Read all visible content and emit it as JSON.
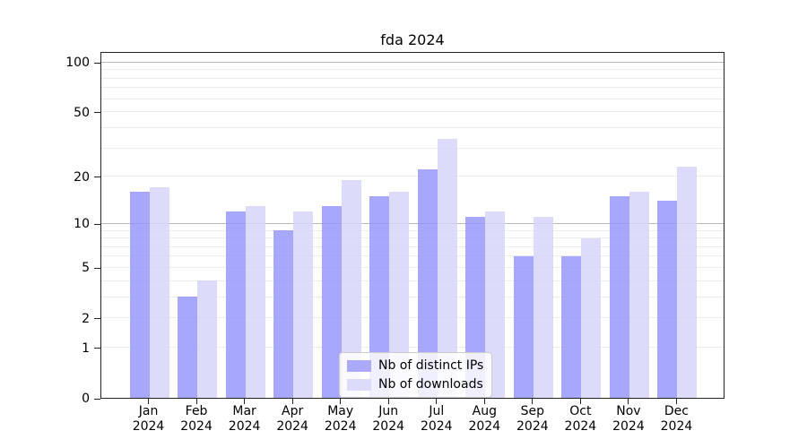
{
  "title": "fda 2024",
  "legend": {
    "items": [
      "Nb of distinct IPs",
      "Nb of downloads"
    ]
  },
  "chart_data": {
    "type": "bar",
    "title": "fda 2024",
    "categories": [
      "Jan 2024",
      "Feb 2024",
      "Mar 2024",
      "Apr 2024",
      "May 2024",
      "Jun 2024",
      "Jul 2024",
      "Aug 2024",
      "Sep 2024",
      "Oct 2024",
      "Nov 2024",
      "Dec 2024"
    ],
    "series": [
      {
        "name": "Nb of distinct IPs",
        "slug": "distinct-ips",
        "color": "#aaaaf8",
        "rgba": "rgba(145,145,250,0.8)",
        "values": [
          16,
          3,
          12,
          9,
          13,
          15,
          22,
          11,
          6,
          6,
          15,
          14
        ]
      },
      {
        "name": "Nb of downloads",
        "slug": "downloads",
        "color": "#dcdcfa",
        "rgba": "rgba(211,211,249,0.8)",
        "values": [
          17,
          4,
          13,
          12,
          19,
          16,
          34,
          12,
          11,
          8,
          16,
          23
        ]
      }
    ],
    "xlabel": "",
    "ylabel": "",
    "y_scale": "log10(value+1)",
    "y_ticks": [
      0,
      1,
      2,
      5,
      10,
      20,
      50,
      100
    ],
    "ylim": [
      0,
      116
    ],
    "grid": {
      "minor": [
        1,
        2,
        3,
        4,
        5,
        6,
        7,
        8,
        9,
        20,
        30,
        40,
        50,
        60,
        70,
        80,
        90
      ],
      "major": [
        10,
        100
      ]
    },
    "legend_position": "lower center",
    "colors": {
      "axis": "#222222",
      "grid_minor": "#ededed",
      "grid_major": "#b9b9b9",
      "legend_border": "#cccccc"
    }
  }
}
